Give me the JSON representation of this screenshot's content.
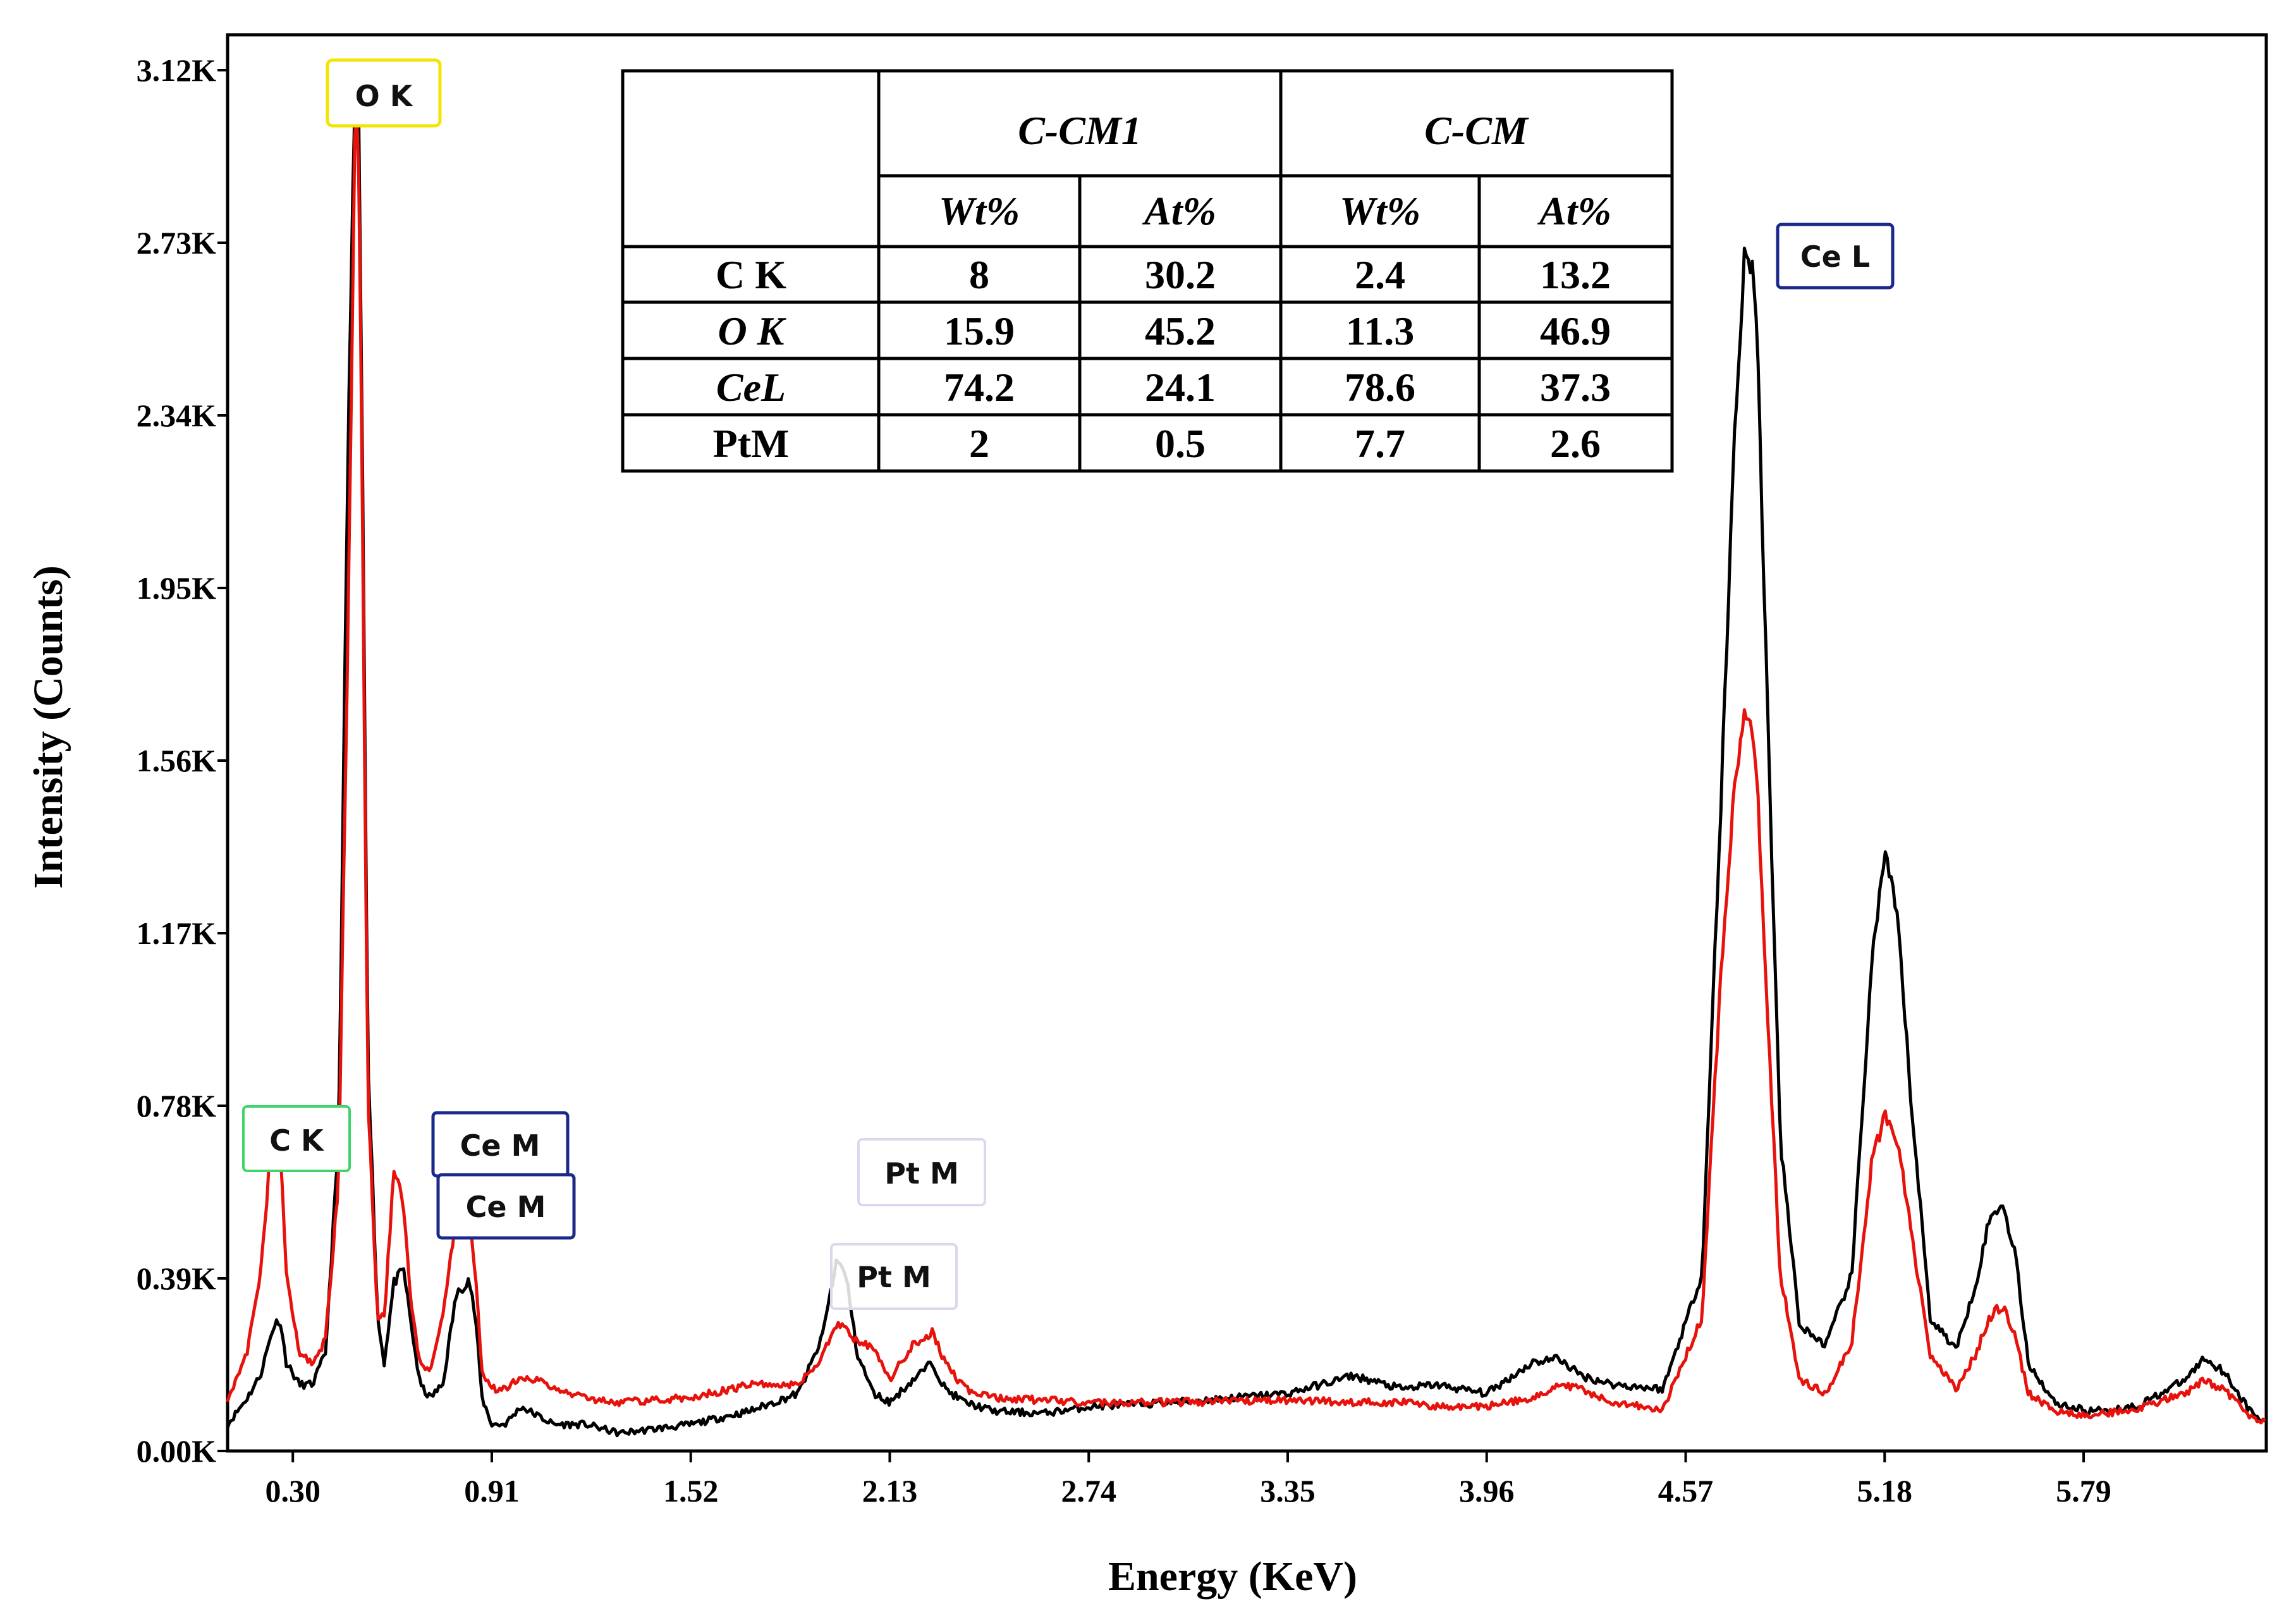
{
  "chart_data": {
    "type": "line",
    "xlabel": "Energy (KeV)",
    "ylabel": "Intensity (Counts)",
    "xlim": [
      0.1,
      6.35
    ],
    "ylim": [
      0,
      3200
    ],
    "x_ticks": [
      0.3,
      0.91,
      1.52,
      2.13,
      2.74,
      3.35,
      3.96,
      4.57,
      5.18,
      5.79
    ],
    "x_tick_labels": [
      "0.30",
      "0.91",
      "1.52",
      "2.13",
      "2.74",
      "3.35",
      "3.96",
      "4.57",
      "5.18",
      "5.79"
    ],
    "y_ticks": [
      0,
      390,
      780,
      1170,
      1560,
      1950,
      2340,
      2730,
      3120
    ],
    "y_tick_labels": [
      "0.00K",
      "0.39K",
      "0.78K",
      "1.17K",
      "1.56K",
      "1.95K",
      "2.34K",
      "2.73K",
      "3.12K"
    ],
    "grid": false,
    "legend": "none",
    "series": [
      {
        "color": "#000000",
        "x": [
          0.1,
          0.16,
          0.2,
          0.24,
          0.26,
          0.28,
          0.32,
          0.36,
          0.4,
          0.44,
          0.47,
          0.49,
          0.5,
          0.51,
          0.53,
          0.56,
          0.58,
          0.61,
          0.64,
          0.66,
          0.69,
          0.72,
          0.76,
          0.8,
          0.84,
          0.86,
          0.88,
          0.91,
          0.95,
          1.0,
          1.05,
          1.1,
          1.2,
          1.3,
          1.52,
          1.7,
          1.85,
          1.92,
          1.97,
          2.0,
          2.03,
          2.08,
          2.13,
          2.2,
          2.26,
          2.3,
          2.36,
          2.45,
          2.6,
          2.74,
          3.0,
          3.35,
          3.55,
          3.7,
          3.8,
          3.96,
          4.1,
          4.18,
          4.25,
          4.35,
          4.5,
          4.62,
          4.68,
          4.72,
          4.75,
          4.77,
          4.79,
          4.82,
          4.86,
          4.92,
          5.0,
          5.08,
          5.14,
          5.18,
          5.22,
          5.26,
          5.32,
          5.4,
          5.46,
          5.5,
          5.54,
          5.58,
          5.62,
          5.7,
          5.8,
          5.95,
          6.1,
          6.16,
          6.22,
          6.3,
          6.35
        ],
        "y": [
          60,
          120,
          170,
          280,
          300,
          200,
          150,
          150,
          220,
          700,
          2300,
          3040,
          3100,
          2500,
          900,
          300,
          200,
          380,
          410,
          300,
          150,
          120,
          150,
          350,
          390,
          300,
          120,
          60,
          60,
          100,
          80,
          60,
          60,
          40,
          60,
          90,
          130,
          250,
          440,
          380,
          220,
          130,
          110,
          160,
          200,
          140,
          110,
          90,
          85,
          100,
          110,
          130,
          170,
          140,
          150,
          130,
          200,
          210,
          170,
          150,
          140,
          400,
          1500,
          2300,
          2700,
          2700,
          2500,
          1700,
          700,
          280,
          240,
          400,
          1100,
          1350,
          1200,
          800,
          300,
          230,
          380,
          520,
          560,
          450,
          200,
          110,
          90,
          100,
          160,
          210,
          180,
          90,
          60
        ]
      },
      {
        "color": "#e8120c",
        "x": [
          0.1,
          0.16,
          0.2,
          0.24,
          0.26,
          0.28,
          0.32,
          0.36,
          0.4,
          0.44,
          0.47,
          0.49,
          0.5,
          0.51,
          0.53,
          0.56,
          0.58,
          0.61,
          0.64,
          0.66,
          0.69,
          0.72,
          0.76,
          0.8,
          0.84,
          0.86,
          0.88,
          0.91,
          0.95,
          1.0,
          1.05,
          1.1,
          1.2,
          1.3,
          1.52,
          1.7,
          1.85,
          1.92,
          1.97,
          2.0,
          2.03,
          2.08,
          2.13,
          2.2,
          2.26,
          2.3,
          2.36,
          2.45,
          2.6,
          2.74,
          3.0,
          3.35,
          3.55,
          3.7,
          3.8,
          3.96,
          4.1,
          4.18,
          4.25,
          4.35,
          4.5,
          4.62,
          4.68,
          4.72,
          4.75,
          4.77,
          4.79,
          4.82,
          4.86,
          4.92,
          5.0,
          5.08,
          5.14,
          5.18,
          5.22,
          5.26,
          5.32,
          5.4,
          5.46,
          5.5,
          5.54,
          5.58,
          5.62,
          5.7,
          5.8,
          5.95,
          6.1,
          6.16,
          6.22,
          6.3,
          6.35
        ],
        "y": [
          120,
          220,
          400,
          740,
          700,
          400,
          220,
          200,
          250,
          600,
          1900,
          2950,
          3020,
          2400,
          800,
          300,
          300,
          640,
          550,
          350,
          190,
          180,
          300,
          520,
          560,
          400,
          180,
          140,
          140,
          170,
          160,
          140,
          120,
          110,
          120,
          150,
          150,
          210,
          290,
          270,
          250,
          230,
          160,
          240,
          270,
          200,
          140,
          120,
          115,
          110,
          110,
          115,
          110,
          110,
          100,
          100,
          120,
          150,
          140,
          110,
          95,
          300,
          1100,
          1500,
          1660,
          1640,
          1500,
          1000,
          400,
          160,
          130,
          250,
          650,
          760,
          700,
          500,
          220,
          140,
          220,
          300,
          330,
          260,
          130,
          90,
          80,
          95,
          130,
          160,
          140,
          80,
          60
        ]
      }
    ]
  },
  "peak_labels": [
    {
      "text": "O  K",
      "border_color": "#f2e500"
    },
    {
      "text": "C   K",
      "border_color": "#3fd46a"
    },
    {
      "text": "Ce M",
      "border_color": "#1b2a8a"
    },
    {
      "text": "Ce M",
      "border_color": "#1b2a8a"
    },
    {
      "text": "Pt M",
      "border_color": "#d8d8ef"
    },
    {
      "text": "Pt M",
      "border_color": "#d8d8ef"
    },
    {
      "text": "Ce L",
      "border_color": "#1b2a8a"
    }
  ],
  "table": {
    "groups": [
      "C-CM1",
      "C-CM"
    ],
    "subheaders": [
      "Wt%",
      "At%",
      "Wt%",
      "At%"
    ],
    "rows": [
      {
        "element": "C K",
        "italic": false,
        "values": [
          "8",
          "30.2",
          "2.4",
          "13.2"
        ]
      },
      {
        "element": "O K",
        "italic": true,
        "values": [
          "15.9",
          "45.2",
          "11.3",
          "46.9"
        ]
      },
      {
        "element": "CeL",
        "italic": true,
        "values": [
          "74.2",
          "24.1",
          "78.6",
          "37.3"
        ]
      },
      {
        "element": "PtM",
        "italic": false,
        "values": [
          "2",
          "0.5",
          "7.7",
          "2.6"
        ]
      }
    ]
  }
}
